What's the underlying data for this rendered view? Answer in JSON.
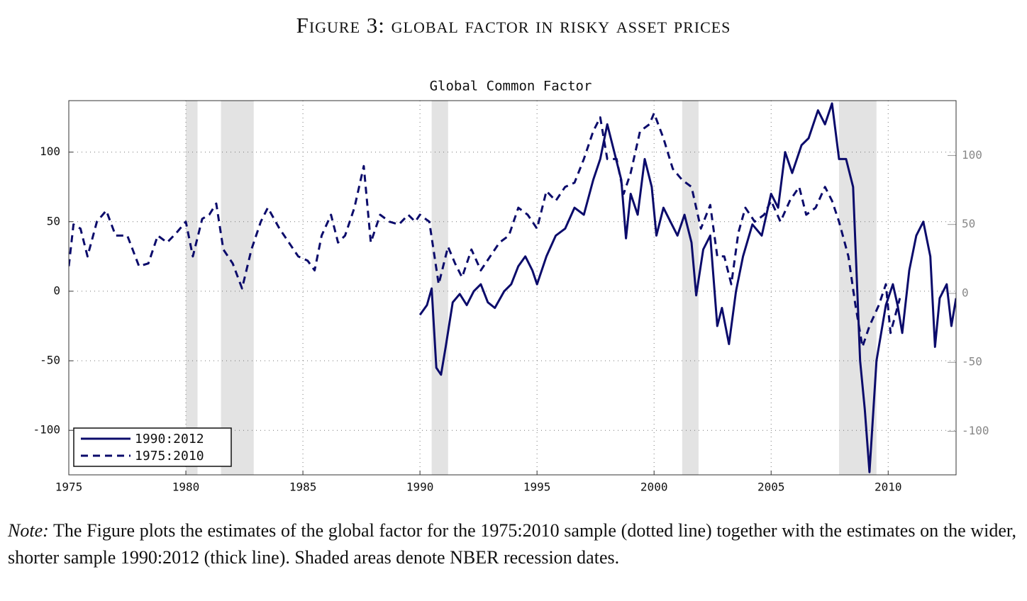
{
  "figure_title": "Figure 3: global factor in risky asset prices",
  "note_label": "Note:",
  "note_text": "The Figure plots the estimates of the global factor for the 1975:2010 sample (dotted line) together with the estimates on the wider, shorter sample 1990:2012 (thick line). Shaded areas denote NBER recession dates.",
  "chart_data": {
    "type": "line",
    "title": "Global Common Factor",
    "xlim": [
      1975,
      2012.9
    ],
    "xticks": [
      1975,
      1980,
      1985,
      1990,
      1995,
      2000,
      2005,
      2010
    ],
    "ylim": [
      -132,
      137
    ],
    "yticks": [
      -100,
      -50,
      0,
      50,
      100
    ],
    "y2lim": [
      -131.6,
      139.8
    ],
    "y2ticks": [
      -100,
      -50,
      0,
      50,
      100
    ],
    "grid": true,
    "legend": "lower left",
    "shaded_regions": [
      [
        1980.0,
        1980.5
      ],
      [
        1981.5,
        1982.9
      ],
      [
        1990.5,
        1991.2
      ],
      [
        2001.2,
        2001.9
      ],
      [
        2007.9,
        2009.5
      ]
    ],
    "series": [
      {
        "name": "1990:2012",
        "color": "#0b0b6b",
        "style": "solid",
        "x": [
          1990.0,
          1990.3,
          1990.5,
          1990.7,
          1990.9,
          1991.1,
          1991.4,
          1991.7,
          1992.0,
          1992.3,
          1992.6,
          1992.9,
          1993.2,
          1993.6,
          1993.9,
          1994.2,
          1994.5,
          1994.8,
          1995.0,
          1995.4,
          1995.8,
          1996.2,
          1996.6,
          1997.0,
          1997.4,
          1997.7,
          1998.0,
          1998.3,
          1998.6,
          1998.8,
          1999.0,
          1999.3,
          1999.6,
          1999.9,
          2000.1,
          2000.4,
          2000.7,
          2001.0,
          2001.3,
          2001.6,
          2001.8,
          2002.1,
          2002.4,
          2002.7,
          2002.9,
          2003.2,
          2003.5,
          2003.8,
          2004.2,
          2004.6,
          2005.0,
          2005.3,
          2005.6,
          2005.9,
          2006.3,
          2006.6,
          2007.0,
          2007.3,
          2007.6,
          2007.9,
          2008.2,
          2008.5,
          2008.8,
          2009.0,
          2009.2,
          2009.5,
          2009.9,
          2010.2,
          2010.4,
          2010.6,
          2010.9,
          2011.2,
          2011.5,
          2011.8,
          2012.0,
          2012.2,
          2012.5,
          2012.7,
          2012.9
        ],
        "values": [
          -17,
          -10,
          2,
          -55,
          -60,
          -40,
          -8,
          -2,
          -10,
          0,
          5,
          -8,
          -12,
          0,
          5,
          18,
          25,
          15,
          5,
          25,
          40,
          45,
          60,
          55,
          80,
          95,
          120,
          100,
          80,
          38,
          70,
          55,
          95,
          75,
          40,
          60,
          50,
          40,
          55,
          35,
          -3,
          30,
          40,
          -25,
          -12,
          -38,
          0,
          25,
          48,
          40,
          70,
          60,
          100,
          85,
          105,
          110,
          130,
          120,
          135,
          95,
          95,
          75,
          -50,
          -85,
          -130,
          -50,
          -10,
          5,
          -10,
          -30,
          15,
          40,
          50,
          25,
          -40,
          -5,
          5,
          -25,
          -5
        ]
      },
      {
        "name": "1975:2010",
        "color": "#0b0b6b",
        "style": "dashed",
        "x": [
          1975.0,
          1975.2,
          1975.5,
          1975.8,
          1976.2,
          1976.6,
          1977.0,
          1977.5,
          1978.0,
          1978.4,
          1978.8,
          1979.2,
          1979.6,
          1980.0,
          1980.3,
          1980.7,
          1981.0,
          1981.3,
          1981.6,
          1982.0,
          1982.4,
          1982.8,
          1983.2,
          1983.5,
          1984.0,
          1984.4,
          1984.8,
          1985.2,
          1985.5,
          1985.8,
          1986.2,
          1986.5,
          1986.8,
          1987.2,
          1987.6,
          1987.9,
          1988.3,
          1988.7,
          1989.1,
          1989.5,
          1989.8,
          1990.0,
          1990.4,
          1990.8,
          1991.2,
          1991.5,
          1991.8,
          1992.2,
          1992.6,
          1993.0,
          1993.4,
          1993.8,
          1994.2,
          1994.6,
          1995.0,
          1995.4,
          1995.8,
          1996.2,
          1996.6,
          1997.0,
          1997.4,
          1997.7,
          1998.0,
          1998.4,
          1998.7,
          1999.0,
          1999.4,
          1999.8,
          2000.0,
          2000.4,
          2000.8,
          2001.2,
          2001.6,
          2002.0,
          2002.4,
          2002.7,
          2003.0,
          2003.3,
          2003.6,
          2003.9,
          2004.3,
          2004.7,
          2005.0,
          2005.4,
          2005.8,
          2006.2,
          2006.5,
          2006.9,
          2007.3,
          2007.6,
          2007.9,
          2008.3,
          2008.6,
          2008.9,
          2009.2,
          2009.6,
          2009.9,
          2010.1,
          2010.5
        ],
        "values": [
          18,
          48,
          45,
          25,
          50,
          58,
          40,
          40,
          18,
          20,
          40,
          35,
          42,
          50,
          25,
          52,
          55,
          63,
          30,
          20,
          2,
          30,
          50,
          60,
          45,
          35,
          25,
          22,
          15,
          40,
          55,
          35,
          40,
          60,
          90,
          35,
          55,
          50,
          48,
          55,
          50,
          55,
          50,
          5,
          32,
          20,
          10,
          30,
          15,
          25,
          35,
          40,
          60,
          55,
          45,
          72,
          65,
          75,
          78,
          95,
          115,
          125,
          95,
          95,
          70,
          85,
          115,
          120,
          128,
          110,
          88,
          80,
          75,
          45,
          62,
          25,
          25,
          5,
          42,
          60,
          50,
          55,
          65,
          50,
          65,
          75,
          55,
          60,
          75,
          65,
          50,
          25,
          -10,
          -40,
          -25,
          -10,
          5,
          -30,
          -5
        ]
      }
    ]
  }
}
